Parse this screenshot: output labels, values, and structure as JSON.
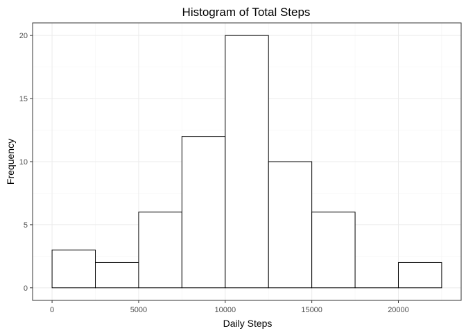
{
  "chart_data": {
    "type": "bar",
    "title": "Histogram of Total Steps",
    "xlabel": "Daily Steps",
    "ylabel": "Frequency",
    "bins": [
      {
        "x0": 0,
        "x1": 2500,
        "count": 3
      },
      {
        "x0": 2500,
        "x1": 5000,
        "count": 2
      },
      {
        "x0": 5000,
        "x1": 7500,
        "count": 6
      },
      {
        "x0": 7500,
        "x1": 10000,
        "count": 12
      },
      {
        "x0": 10000,
        "x1": 12500,
        "count": 20
      },
      {
        "x0": 12500,
        "x1": 15000,
        "count": 10
      },
      {
        "x0": 15000,
        "x1": 17500,
        "count": 6
      },
      {
        "x0": 17500,
        "x1": 20000,
        "count": 0
      },
      {
        "x0": 20000,
        "x1": 22500,
        "count": 2
      }
    ],
    "xlim": [
      -1125,
      23625
    ],
    "ylim": [
      -1,
      21
    ],
    "x_ticks": [
      0,
      5000,
      10000,
      15000,
      20000
    ],
    "x_tick_labels": [
      "0",
      "5000",
      "10000",
      "15000",
      "20000"
    ],
    "y_ticks": [
      0,
      5,
      10,
      15,
      20
    ],
    "y_tick_labels": [
      "0",
      "5",
      "10",
      "15",
      "20"
    ],
    "grid": true,
    "legend": "none",
    "colors": {
      "bar_fill": "#ffffff",
      "bar_stroke": "#000000",
      "grid": "#ebebeb",
      "panel_border": "#333333"
    }
  }
}
